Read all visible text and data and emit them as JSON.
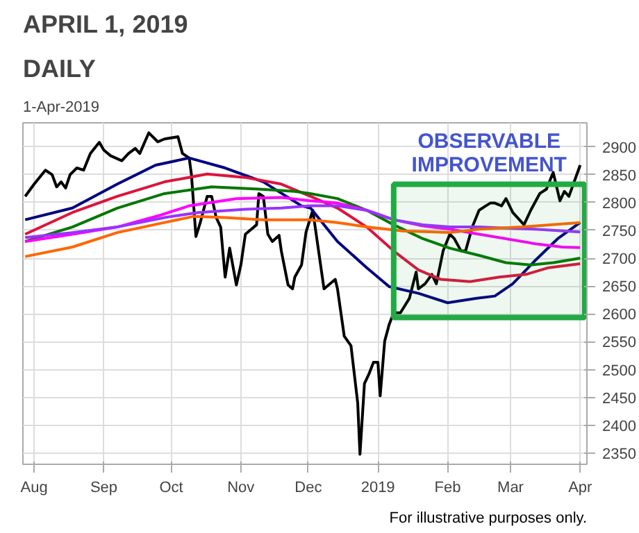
{
  "chart_data": {
    "type": "line",
    "title": "APRIL 1, 2019",
    "subtitle": "DAILY",
    "annotations": [
      "1-Apr-2019",
      "For illustrative purposes only."
    ],
    "xlim": [
      "2018-07-27",
      "2019-04-04"
    ],
    "ylim": [
      2330,
      2943
    ],
    "xticks": [
      {
        "value": "2018-08-01",
        "label": "Aug"
      },
      {
        "value": "2018-09-01",
        "label": "Sep"
      },
      {
        "value": "2018-10-01",
        "label": "Oct"
      },
      {
        "value": "2018-11-01",
        "label": "Nov"
      },
      {
        "value": "2018-12-01",
        "label": "Dec"
      },
      {
        "value": "2019-01-01",
        "label": "2019"
      },
      {
        "value": "2019-02-01",
        "label": "Feb"
      },
      {
        "value": "2019-03-01",
        "label": "Mar"
      },
      {
        "value": "2019-04-01",
        "label": "Apr"
      }
    ],
    "yticks": [
      2350,
      2400,
      2450,
      2500,
      2550,
      2600,
      2650,
      2700,
      2750,
      2800,
      2850,
      2900
    ],
    "grid": true,
    "marker": "none",
    "line_style": "solid",
    "bands": [
      {
        "axis": "x",
        "from": "2019-01-08",
        "to": "2019-04-03",
        "label": "OBSERVABLE IMPROVEMENT",
        "color": "#22aa44"
      }
    ],
    "series": [
      {
        "color": "#000000",
        "x": [
          "2018-07-28",
          "2018-08-01",
          "2018-08-06",
          "2018-08-09",
          "2018-08-11",
          "2018-08-13",
          "2018-08-15",
          "2018-08-17",
          "2018-08-20",
          "2018-08-23",
          "2018-08-26",
          "2018-08-30",
          "2018-09-01",
          "2018-09-04",
          "2018-09-09",
          "2018-09-12",
          "2018-09-15",
          "2018-09-17",
          "2018-09-21",
          "2018-09-25",
          "2018-09-28",
          "2018-10-04",
          "2018-10-06",
          "2018-10-09",
          "2018-10-10",
          "2018-10-12",
          "2018-10-14",
          "2018-10-17",
          "2018-10-19",
          "2018-10-21",
          "2018-10-23",
          "2018-10-25",
          "2018-10-27",
          "2018-10-30",
          "2018-11-01",
          "2018-11-03",
          "2018-11-08",
          "2018-11-09",
          "2018-11-11",
          "2018-11-13",
          "2018-11-15",
          "2018-11-18",
          "2018-11-19",
          "2018-11-22",
          "2018-11-24",
          "2018-11-25",
          "2018-11-28",
          "2018-11-30",
          "2018-12-03",
          "2018-12-08",
          "2018-12-13",
          "2018-12-14",
          "2018-12-17",
          "2018-12-20",
          "2018-12-23",
          "2018-12-24",
          "2018-12-26",
          "2018-12-28",
          "2018-12-30",
          "2019-01-01",
          "2019-01-02",
          "2019-01-04",
          "2019-01-06",
          "2019-01-08",
          "2019-01-11",
          "2019-01-15",
          "2019-01-18",
          "2019-01-19",
          "2019-01-22",
          "2019-01-25",
          "2019-01-27",
          "2019-01-30",
          "2019-02-02",
          "2019-02-04",
          "2019-02-07",
          "2019-02-09",
          "2019-02-12",
          "2019-02-15",
          "2019-02-18",
          "2019-02-20",
          "2019-02-22",
          "2019-02-25",
          "2019-02-27",
          "2019-03-02",
          "2019-03-07",
          "2019-03-10",
          "2019-03-14",
          "2019-03-17",
          "2019-03-20",
          "2019-03-23",
          "2019-03-25",
          "2019-03-27",
          "2019-04-01"
        ],
        "values": [
          2811,
          2833,
          2858,
          2850,
          2828,
          2837,
          2826,
          2850,
          2862,
          2858,
          2888,
          2908,
          2894,
          2884,
          2875,
          2888,
          2897,
          2888,
          2925,
          2909,
          2914,
          2918,
          2888,
          2880,
          2850,
          2739,
          2765,
          2811,
          2811,
          2773,
          2756,
          2666,
          2718,
          2652,
          2688,
          2743,
          2760,
          2816,
          2811,
          2743,
          2730,
          2741,
          2713,
          2652,
          2645,
          2666,
          2688,
          2747,
          2786,
          2645,
          2662,
          2645,
          2560,
          2543,
          2440,
          2348,
          2475,
          2492,
          2513,
          2513,
          2453,
          2551,
          2581,
          2602,
          2602,
          2628,
          2675,
          2645,
          2654,
          2671,
          2654,
          2713,
          2743,
          2735,
          2713,
          2713,
          2756,
          2786,
          2794,
          2799,
          2799,
          2794,
          2807,
          2782,
          2760,
          2786,
          2816,
          2824,
          2854,
          2803,
          2820,
          2811,
          2867
        ]
      },
      {
        "color": "#000080",
        "x": [
          "2018-07-28",
          "2018-08-18",
          "2018-09-07",
          "2018-09-24",
          "2018-10-09",
          "2018-10-25",
          "2018-11-11",
          "2018-11-28",
          "2018-12-02",
          "2018-12-14",
          "2018-12-27",
          "2019-01-06",
          "2019-01-19",
          "2019-02-01",
          "2019-02-14",
          "2019-02-22",
          "2019-03-02",
          "2019-03-12",
          "2019-03-22",
          "2019-04-01"
        ],
        "values": [
          2769,
          2790,
          2833,
          2867,
          2880,
          2862,
          2837,
          2794,
          2790,
          2730,
          2683,
          2649,
          2637,
          2620,
          2628,
          2632,
          2654,
          2696,
          2735,
          2764
        ]
      },
      {
        "color": "#dc143c",
        "x": [
          "2018-07-28",
          "2018-08-18",
          "2018-09-07",
          "2018-09-28",
          "2018-10-17",
          "2018-11-03",
          "2018-11-19",
          "2018-12-02",
          "2018-12-14",
          "2018-12-27",
          "2019-01-08",
          "2019-01-19",
          "2019-01-29",
          "2019-02-11",
          "2019-02-24",
          "2019-03-08",
          "2019-03-18",
          "2019-04-01"
        ],
        "values": [
          2743,
          2782,
          2811,
          2837,
          2851,
          2845,
          2833,
          2811,
          2790,
          2756,
          2713,
          2679,
          2662,
          2658,
          2666,
          2671,
          2683,
          2690
        ]
      },
      {
        "color": "#007700",
        "x": [
          "2018-07-28",
          "2018-08-18",
          "2018-09-07",
          "2018-09-28",
          "2018-10-19",
          "2018-11-09",
          "2018-11-25",
          "2018-12-02",
          "2018-12-14",
          "2018-12-27",
          "2019-01-08",
          "2019-01-21",
          "2019-02-02",
          "2019-02-15",
          "2019-02-27",
          "2019-03-10",
          "2019-03-20",
          "2019-04-01"
        ],
        "values": [
          2730,
          2756,
          2790,
          2816,
          2828,
          2824,
          2820,
          2816,
          2807,
          2786,
          2760,
          2735,
          2718,
          2705,
          2692,
          2688,
          2692,
          2700
        ]
      },
      {
        "color": "#ff00ff",
        "x": [
          "2018-07-28",
          "2018-08-18",
          "2018-09-07",
          "2018-09-26",
          "2018-10-09",
          "2018-10-30",
          "2018-11-19",
          "2018-12-02",
          "2018-12-14",
          "2018-12-27",
          "2019-01-08",
          "2019-01-21",
          "2019-02-02",
          "2019-02-15",
          "2019-02-27",
          "2019-03-12",
          "2019-03-24",
          "2019-04-01"
        ],
        "values": [
          2730,
          2743,
          2756,
          2777,
          2794,
          2807,
          2809,
          2803,
          2799,
          2786,
          2769,
          2758,
          2752,
          2743,
          2735,
          2726,
          2720,
          2719
        ]
      },
      {
        "color": "#9933ff",
        "x": [
          "2018-07-28",
          "2018-08-18",
          "2018-09-07",
          "2018-09-28",
          "2018-10-13",
          "2018-11-03",
          "2018-11-19",
          "2018-12-02",
          "2018-12-14",
          "2018-12-27",
          "2019-01-08",
          "2019-01-21",
          "2019-02-02",
          "2019-02-15",
          "2019-02-27",
          "2019-03-12",
          "2019-04-01"
        ],
        "values": [
          2737,
          2746,
          2756,
          2773,
          2782,
          2788,
          2790,
          2794,
          2794,
          2786,
          2769,
          2760,
          2756,
          2756,
          2754,
          2752,
          2747
        ]
      },
      {
        "color": "#ff6600",
        "x": [
          "2018-07-28",
          "2018-08-18",
          "2018-09-07",
          "2018-09-28",
          "2018-10-11",
          "2018-10-25",
          "2018-11-11",
          "2018-12-02",
          "2018-12-14",
          "2018-12-27",
          "2019-01-12",
          "2019-02-02",
          "2019-02-15",
          "2019-03-06",
          "2019-04-01"
        ],
        "values": [
          2703,
          2720,
          2746,
          2764,
          2775,
          2773,
          2769,
          2769,
          2764,
          2756,
          2749,
          2746,
          2752,
          2756,
          2764
        ]
      }
    ]
  }
}
